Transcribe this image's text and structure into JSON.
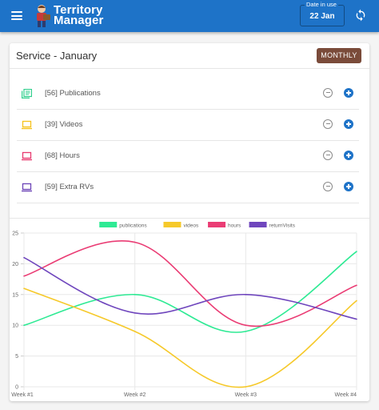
{
  "appbar": {
    "title_line1": "Territory",
    "title_line2": "Manager",
    "date_label": "Date in use",
    "date_value": "22 Jan"
  },
  "service": {
    "title": "Service - January",
    "monthly_label": "MONTHLY"
  },
  "stats": [
    {
      "label": "[56] Publications",
      "icon": "publications-icon",
      "color": "#2ecf8c"
    },
    {
      "label": "[39] Videos",
      "icon": "videos-icon",
      "color": "#f6c21c"
    },
    {
      "label": "[68] Hours",
      "icon": "hours-icon",
      "color": "#e83a6f"
    },
    {
      "label": "[59] Extra RVs",
      "icon": "extra-rvs-icon",
      "color": "#6c44b7"
    }
  ],
  "chart_data": {
    "type": "line",
    "categories": [
      "Week #1",
      "Week #2",
      "Week #3",
      "Week #4"
    ],
    "ylim": [
      0,
      25
    ],
    "yticks": [
      "0",
      "5",
      "10",
      "15",
      "20",
      "25"
    ],
    "legend_position": "top",
    "grid": true,
    "series": [
      {
        "name": "publications",
        "values": [
          10,
          15,
          9,
          22
        ],
        "color": "#2eea94"
      },
      {
        "name": "videos",
        "values": [
          16,
          9,
          0,
          14
        ],
        "color": "#f6c92a"
      },
      {
        "name": "hours",
        "values": [
          18,
          23.5,
          10,
          16.5
        ],
        "color": "#ea3c74"
      },
      {
        "name": "returnVisits",
        "values": [
          21,
          12,
          15,
          11
        ],
        "color": "#6f46bd"
      }
    ]
  }
}
